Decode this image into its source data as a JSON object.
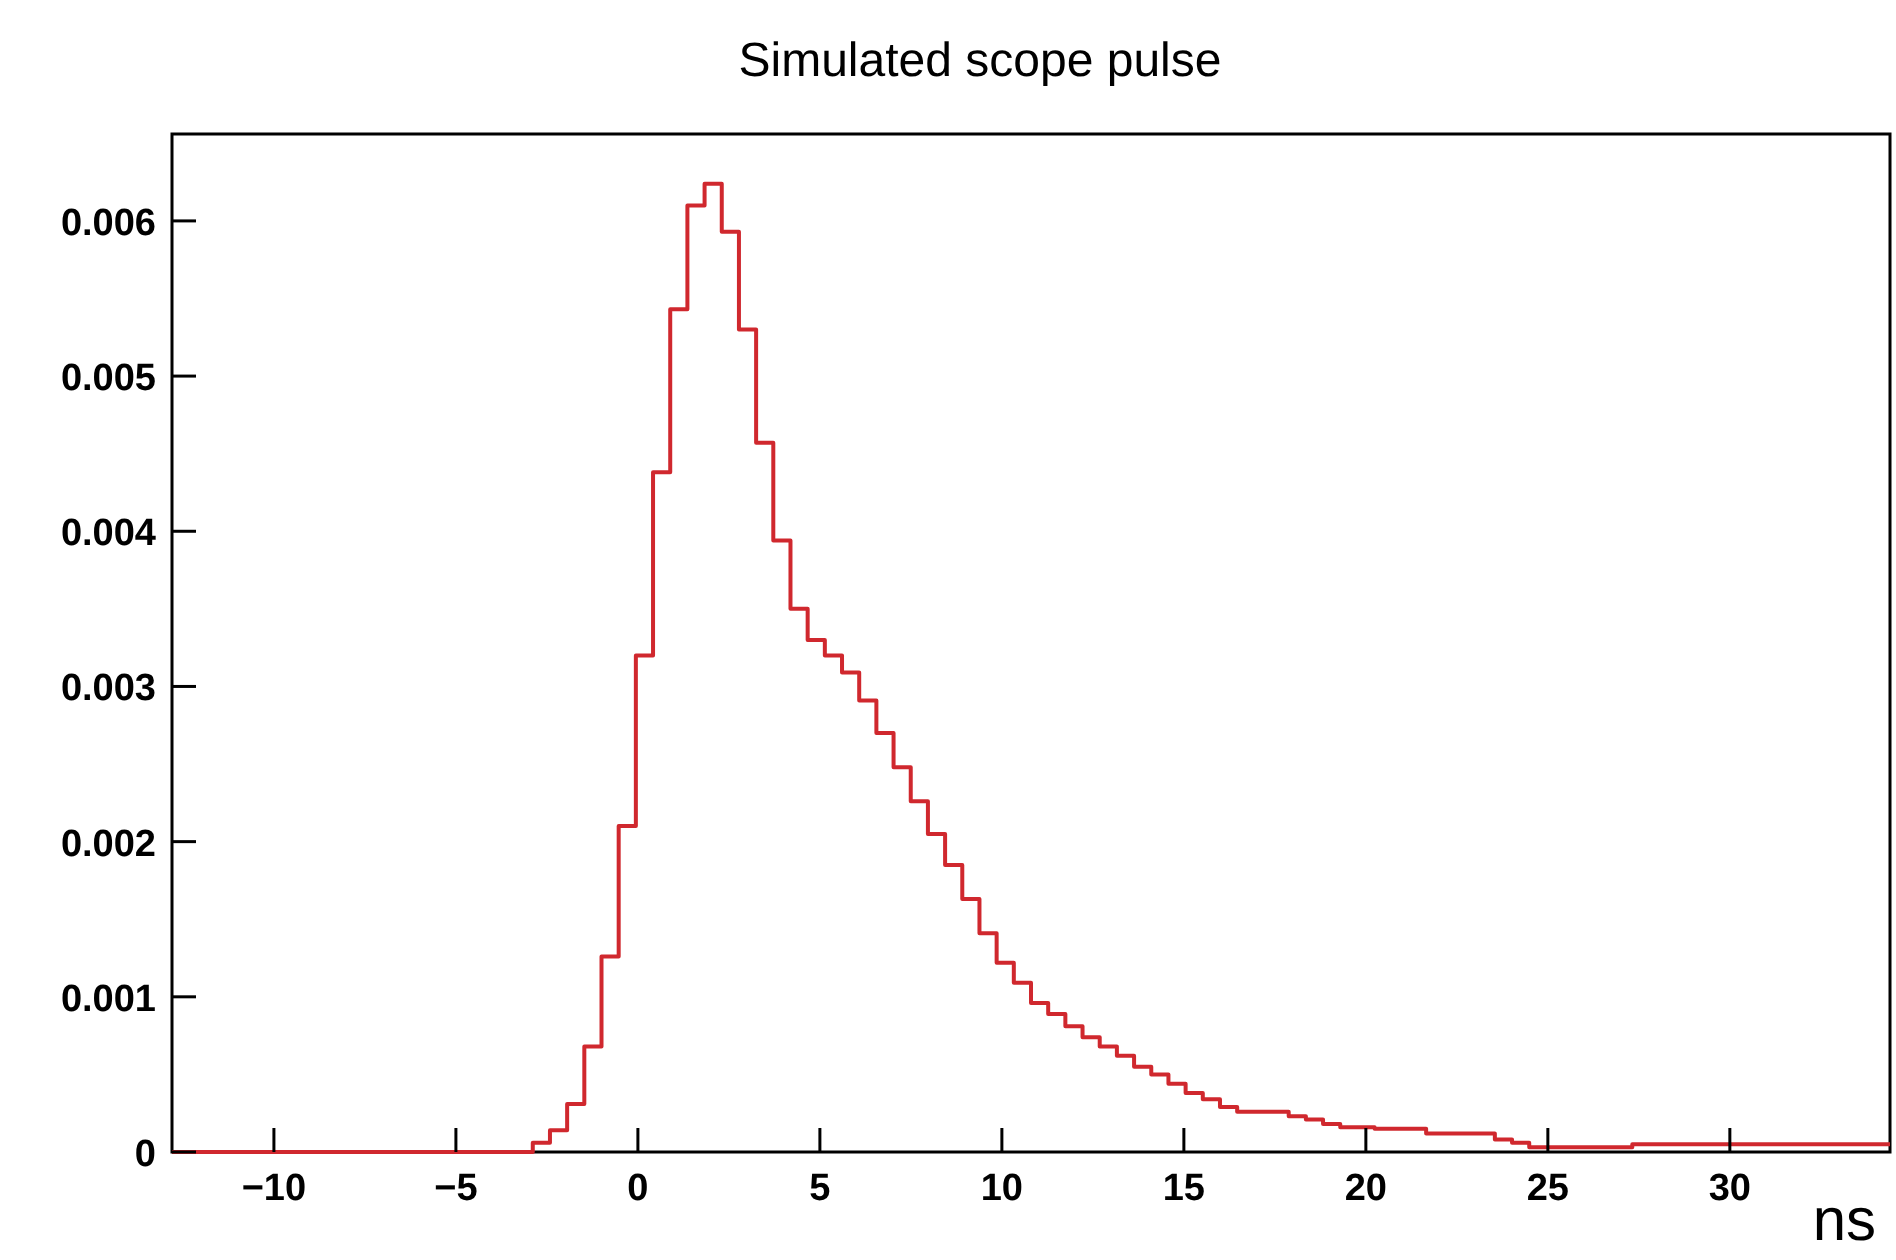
{
  "chart_data": {
    "type": "histogram",
    "title": "Simulated scope pulse",
    "xlabel": "ns",
    "color": "#d0282e",
    "bins": [
      -12.8,
      -12.328,
      -11.856,
      -11.384,
      -10.912,
      -10.44,
      -9.968,
      -9.496,
      -9.024,
      -8.552,
      -8.08,
      -7.608,
      -7.136,
      -6.664,
      -6.192,
      -5.72,
      -5.248,
      -4.776,
      -4.304,
      -3.832,
      -3.36,
      -2.888,
      -2.416,
      -1.944,
      -1.472,
      -1,
      -0.528,
      -0.056,
      0.416,
      0.888,
      1.36,
      1.832,
      2.304,
      2.776,
      3.248,
      3.72,
      4.192,
      4.664,
      5.136,
      5.608,
      6.08,
      6.552,
      7.024,
      7.496,
      7.968,
      8.44,
      8.912,
      9.384,
      9.856,
      10.328,
      10.8,
      11.272,
      11.744,
      12.216,
      12.688,
      13.16,
      13.632,
      14.104,
      14.576,
      15.048,
      15.52,
      15.992,
      16.464,
      16.936,
      17.408,
      17.88,
      18.352,
      18.824,
      19.296,
      19.768,
      20.24,
      20.712,
      21.184,
      21.656,
      22.128,
      22.6,
      23.072,
      23.544,
      24.016,
      24.488,
      24.96,
      25.432,
      25.904,
      26.376,
      26.848,
      27.32,
      27.792,
      28.264,
      28.736,
      29.208,
      29.68,
      30.152,
      30.624,
      31.096,
      31.568,
      32.04,
      32.512,
      32.984,
      33.456,
      33.928,
      34.4
    ],
    "values": [
      0,
      0,
      0,
      0,
      0,
      0,
      0,
      0,
      0,
      0,
      0,
      0,
      0,
      0,
      0,
      0,
      0,
      0,
      0,
      0,
      0,
      6e-05,
      0.00014,
      0.00031,
      0.00068,
      0.00126,
      0.0021,
      0.0032,
      0.00438,
      0.00543,
      0.0061,
      0.00624,
      0.00593,
      0.0053,
      0.00457,
      0.00394,
      0.0035,
      0.0033,
      0.0032,
      0.00309,
      0.00291,
      0.0027,
      0.00248,
      0.00226,
      0.00205,
      0.00185,
      0.00163,
      0.00141,
      0.00122,
      0.00109,
      0.00096,
      0.00089,
      0.00081,
      0.00074,
      0.00068,
      0.00062,
      0.00055,
      0.0005,
      0.00044,
      0.00038,
      0.00034,
      0.00029,
      0.00026,
      0.00026,
      0.00026,
      0.00023,
      0.00021,
      0.00018,
      0.00016,
      0.00016,
      0.00015,
      0.00015,
      0.00015,
      0.00012,
      0.00012,
      0.00012,
      0.00012,
      8e-05,
      6e-05,
      3e-05,
      3e-05,
      3e-05,
      3e-05,
      3e-05,
      3e-05,
      5e-05,
      5e-05,
      5e-05,
      5e-05,
      5e-05,
      5e-05,
      5e-05,
      5e-05,
      5e-05,
      5e-05,
      5e-05,
      5e-05,
      5e-05,
      5e-05,
      5e-05
    ],
    "xlim": [
      -12.8,
      34.4
    ],
    "ylim": [
      0,
      0.00656
    ],
    "xticks": [
      -10,
      -5,
      0,
      5,
      10,
      15,
      20,
      25,
      30
    ],
    "yticks": [
      0,
      0.001,
      0.002,
      0.003,
      0.004,
      0.005,
      0.006
    ]
  }
}
